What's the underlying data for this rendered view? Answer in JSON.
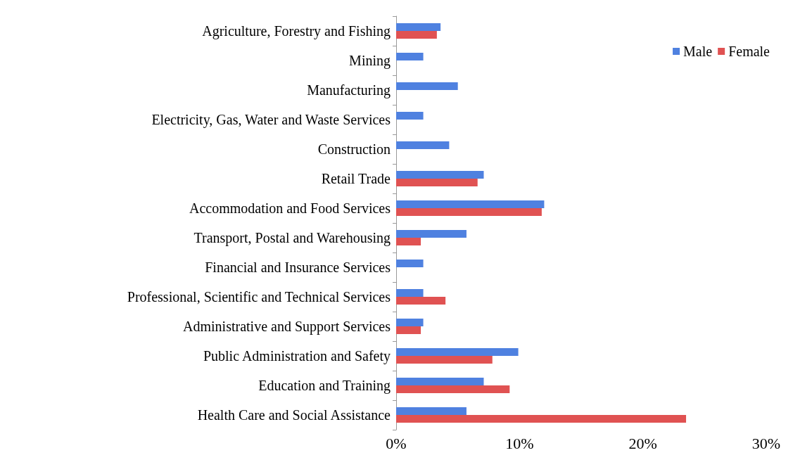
{
  "chart_data": {
    "type": "bar",
    "orientation": "horizontal",
    "categories": [
      "Agriculture, Forestry and Fishing",
      "Mining",
      "Manufacturing",
      "Electricity, Gas, Water and Waste Services",
      "Construction",
      "Retail Trade",
      "Accommodation and Food Services",
      "Transport, Postal and Warehousing",
      "Financial and Insurance Services",
      "Professional, Scientific and Technical Services",
      "Administrative and Support Services",
      "Public Administration and Safety",
      "Education and Training",
      "Health Care and Social Assistance"
    ],
    "series": [
      {
        "name": "Male",
        "color": "#4f81e0",
        "values": [
          3.6,
          2.2,
          5.0,
          2.2,
          4.3,
          7.1,
          12.0,
          5.7,
          2.2,
          2.2,
          2.2,
          9.9,
          7.1,
          5.7
        ]
      },
      {
        "name": "Female",
        "color": "#e05252",
        "values": [
          3.3,
          null,
          null,
          null,
          null,
          6.6,
          11.8,
          2.0,
          null,
          4.0,
          2.0,
          7.8,
          9.2,
          23.5
        ]
      }
    ],
    "xlim": [
      0,
      30
    ],
    "xticks": [
      {
        "value": 0,
        "label": "0%"
      },
      {
        "value": 10,
        "label": "10%"
      },
      {
        "value": 20,
        "label": "20%"
      },
      {
        "value": 30,
        "label": "30%"
      }
    ],
    "grid": false,
    "legend": "top right"
  }
}
